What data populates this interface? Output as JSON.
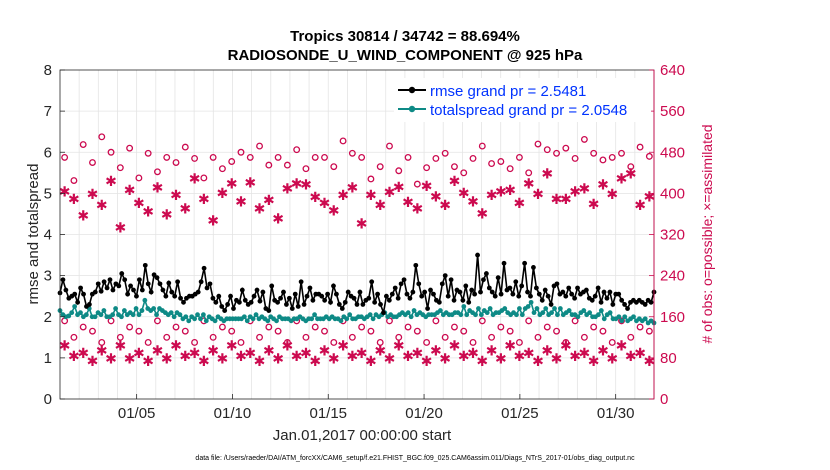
{
  "chart_data": {
    "type": "line",
    "title_line1": "Tropics 30814 / 34742 = 88.694%",
    "title_line2": "RADIOSONDE_U_WIND_COMPONENT @ 925 hPa",
    "xlabel": "Jan.01,2017 00:00:00 start",
    "ylabel_left": "rmse and totalspread",
    "ylabel_right": "# of obs: o=possible; ×=assimilated",
    "ylim_left": [
      0,
      8
    ],
    "ylim_right": [
      0,
      640
    ],
    "yticks_left": [
      "0",
      "1",
      "2",
      "3",
      "4",
      "5",
      "6",
      "7",
      "8"
    ],
    "yticks_right": [
      "0",
      "80",
      "160",
      "240",
      "320",
      "400",
      "480",
      "560",
      "640"
    ],
    "xlim": [
      1,
      32
    ],
    "xticks": [
      {
        "x": 5,
        "label": "01/05"
      },
      {
        "x": 10,
        "label": "01/10"
      },
      {
        "x": 15,
        "label": "01/15"
      },
      {
        "x": 20,
        "label": "01/20"
      },
      {
        "x": 25,
        "label": "01/25"
      },
      {
        "x": 30,
        "label": "01/30"
      }
    ],
    "legend": [
      "rmse grand pr = 2.5481",
      "totalspread grand pr = 2.0548"
    ],
    "footnote": "data file: /Users/raeder/DAI/ATM_forcXX/CAM6_setup/f.e21.FHIST_BGC.f09_025.CAM6assim.011/Diags_NTrS_2017-01/obs_diag_output.nc",
    "colors": {
      "rmse": "#000000",
      "spread": "#0e8a86",
      "obs": "#cc0a4f",
      "legend_text": "#0033ff",
      "grid": "#e4e4e4"
    },
    "rmse": [
      2.58,
      2.9,
      2.65,
      2.45,
      2.5,
      2.55,
      2.35,
      2.7,
      2.55,
      2.25,
      2.3,
      2.55,
      2.6,
      2.8,
      2.62,
      2.85,
      2.7,
      2.9,
      2.65,
      2.8,
      2.75,
      3.05,
      2.9,
      2.55,
      2.75,
      2.65,
      2.5,
      2.9,
      2.65,
      3.25,
      2.8,
      2.6,
      3.02,
      2.95,
      2.8,
      2.65,
      2.5,
      2.82,
      2.6,
      2.5,
      2.85,
      2.45,
      2.35,
      2.45,
      2.5,
      2.5,
      2.55,
      2.6,
      2.85,
      3.18,
      2.7,
      2.8,
      2.45,
      2.35,
      2.5,
      2.25,
      2.15,
      2.3,
      2.5,
      2.2,
      2.4,
      2.35,
      2.65,
      2.4,
      2.3,
      2.35,
      2.5,
      2.65,
      2.38,
      2.6,
      2.2,
      2.15,
      2.75,
      2.4,
      2.35,
      2.45,
      2.6,
      2.3,
      2.45,
      2.2,
      2.55,
      2.25,
      2.85,
      2.3,
      2.5,
      2.7,
      2.4,
      2.55,
      2.55,
      2.5,
      2.4,
      2.55,
      2.35,
      2.75,
      2.55,
      2.3,
      2.2,
      2.35,
      2.6,
      2.5,
      2.45,
      2.3,
      2.6,
      2.3,
      2.4,
      2.45,
      2.85,
      2.35,
      2.55,
      2.3,
      2.1,
      2.5,
      2.4,
      2.55,
      2.7,
      2.45,
      2.8,
      2.9,
      2.55,
      2.45,
      2.6,
      3.25,
      2.8,
      2.5,
      2.6,
      2.2,
      2.65,
      2.55,
      2.4,
      2.35,
      2.8,
      3.0,
      2.5,
      2.9,
      2.4,
      2.65,
      2.6,
      2.4,
      2.75,
      2.35,
      2.65,
      2.55,
      3.5,
      2.6,
      2.9,
      3.05,
      2.7,
      2.6,
      2.5,
      2.95,
      2.55,
      3.3,
      2.65,
      2.7,
      2.55,
      2.85,
      2.5,
      2.75,
      3.3,
      2.6,
      2.5,
      3.2,
      2.7,
      2.55,
      2.4,
      2.65,
      2.5,
      2.3,
      2.75,
      2.8,
      2.55,
      2.6,
      2.5,
      2.7,
      2.55,
      2.45,
      2.7,
      2.55,
      2.6,
      2.65,
      2.45,
      2.4,
      2.5,
      2.7,
      2.35,
      2.6,
      2.45,
      2.6,
      2.3,
      2.55,
      2.55,
      2.4,
      2.3,
      2.2,
      2.35,
      2.4,
      2.35,
      2.4,
      2.35,
      2.3,
      2.4,
      2.35,
      2.6
    ],
    "spread": [
      2.15,
      2.05,
      2.0,
      2.02,
      2.1,
      2.25,
      2.05,
      2.1,
      2.0,
      2.05,
      2.2,
      2.0,
      2.0,
      2.1,
      2.05,
      2.15,
      2.0,
      2.0,
      2.05,
      2.2,
      2.05,
      2.0,
      2.15,
      2.05,
      2.1,
      2.05,
      2.2,
      2.05,
      2.15,
      2.4,
      2.2,
      2.15,
      2.2,
      2.05,
      2.2,
      2.15,
      2.1,
      2.05,
      2.1,
      2.0,
      2.1,
      2.05,
      1.95,
      2.0,
      1.9,
      2.0,
      1.95,
      2.05,
      1.95,
      2.05,
      1.9,
      2.0,
      1.95,
      1.9,
      2.0,
      1.95,
      1.9,
      1.95,
      1.95,
      1.95,
      1.95,
      1.95,
      1.95,
      2.0,
      1.9,
      2.0,
      1.95,
      2.05,
      1.95,
      2.0,
      1.95,
      1.9,
      2.0,
      1.95,
      1.9,
      2.0,
      1.95,
      1.95,
      1.95,
      1.9,
      1.95,
      1.95,
      2.0,
      1.95,
      1.9,
      1.95,
      1.95,
      2.05,
      1.95,
      1.95,
      1.95,
      2.0,
      1.95,
      2.0,
      1.95,
      1.95,
      1.9,
      2.0,
      1.95,
      2.05,
      1.95,
      1.95,
      2.0,
      2.0,
      1.95,
      2.0,
      2.05,
      1.95,
      2.05,
      2.0,
      2.05,
      2.1,
      2.0,
      2.05,
      2.0,
      2.0,
      2.05,
      2.1,
      2.05,
      2.1,
      2.0,
      2.15,
      2.05,
      2.1,
      2.05,
      2.0,
      2.05,
      2.05,
      2.05,
      2.1,
      2.15,
      2.05,
      2.1,
      2.05,
      2.05,
      2.1,
      2.1,
      2.05,
      2.25,
      2.05,
      2.15,
      2.1,
      2.05,
      2.2,
      2.05,
      2.15,
      2.1,
      2.2,
      2.05,
      2.1,
      2.1,
      2.15,
      2.2,
      2.1,
      2.05,
      2.1,
      2.05,
      2.2,
      2.05,
      2.2,
      2.25,
      2.35,
      2.1,
      2.2,
      2.05,
      2.1,
      2.2,
      2.05,
      2.1,
      2.2,
      2.05,
      2.2,
      2.05,
      2.1,
      2.15,
      2.05,
      2.05,
      2.0,
      2.1,
      2.15,
      2.05,
      2.1,
      2.0,
      2.0,
      2.05,
      2.15,
      1.95,
      2.05,
      2.1,
      1.95,
      1.95,
      2.0,
      1.9,
      2.0,
      1.9,
      1.95,
      2.0,
      1.9,
      1.95,
      1.9,
      1.95,
      1.85,
      1.9,
      1.85
    ],
    "obs_possible_high": [
      470,
      425,
      495,
      460,
      510,
      480,
      450,
      488,
      430,
      478,
      442,
      470,
      460,
      490,
      468,
      430,
      470,
      448,
      462,
      480,
      470,
      492,
      455,
      470,
      455,
      485,
      448,
      470,
      470,
      452,
      502,
      478,
      470,
      428,
      452,
      492,
      444,
      470,
      418,
      450,
      468,
      478,
      452,
      440,
      468,
      492,
      458,
      462,
      448,
      470,
      440,
      496,
      485,
      478,
      488,
      468,
      505,
      478,
      465,
      470,
      478,
      452,
      490,
      472
    ],
    "obs_possible_low": [
      152,
      120,
      140,
      132,
      110,
      152,
      120,
      140,
      132,
      110,
      152,
      120,
      140,
      132,
      110,
      152,
      120,
      140,
      132,
      110,
      152,
      120,
      140,
      132,
      110,
      152,
      120,
      140,
      132,
      110,
      152,
      120,
      140,
      132,
      110,
      152,
      120,
      140,
      132,
      110,
      152,
      120,
      140,
      132,
      110,
      152,
      120,
      140,
      132,
      110,
      152,
      120,
      140,
      132,
      110,
      152,
      120,
      140,
      132,
      110,
      152,
      120,
      140,
      132
    ],
    "obs_assim_high": [
      405,
      390,
      358,
      400,
      378,
      425,
      335,
      408,
      382,
      366,
      412,
      360,
      398,
      372,
      430,
      390,
      348,
      402,
      420,
      385,
      422,
      372,
      388,
      352,
      410,
      420,
      418,
      394,
      382,
      368,
      398,
      412,
      342,
      398,
      378,
      404,
      413,
      384,
      372,
      415,
      395,
      378,
      425,
      402,
      385,
      362,
      398,
      405,
      408,
      382,
      420,
      400,
      440,
      390,
      390,
      405,
      410,
      380,
      418,
      400,
      430,
      440,
      378,
      395
    ],
    "obs_assim_low": [
      105,
      85,
      90,
      75,
      95,
      80,
      105,
      80,
      90,
      75,
      95,
      80,
      105,
      85,
      90,
      75,
      95,
      80,
      105,
      85,
      90,
      75,
      95,
      80,
      105,
      85,
      90,
      75,
      95,
      80,
      105,
      85,
      90,
      75,
      95,
      80,
      105,
      85,
      90,
      75,
      95,
      80,
      105,
      85,
      90,
      75,
      95,
      80,
      105,
      85,
      90,
      75,
      95,
      80,
      105,
      85,
      90,
      75,
      95,
      80,
      105,
      85,
      90,
      75
    ]
  }
}
